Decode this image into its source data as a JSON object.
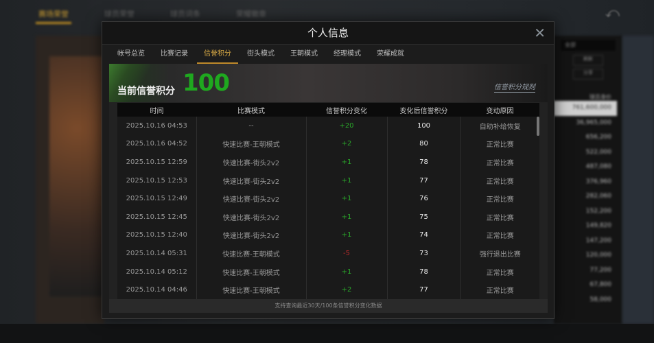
{
  "background": {
    "nav": [
      "赛场荣誉",
      "球员荣誉",
      "球员词条",
      "荣耀徽章"
    ],
    "right_select": "全部",
    "right_buttons": [
      "刷新",
      "分享"
    ],
    "right_header": "球员身价",
    "right_values": [
      "761,600,000",
      "36,965,000",
      "656,200",
      "522,000",
      "487,080",
      "376,960",
      "282,060",
      "152,200",
      "149,820",
      "147,200",
      "120,000",
      "77,200",
      "67,800",
      "58,000"
    ]
  },
  "modal": {
    "title": "个人信息",
    "tabs": [
      "帐号总览",
      "比赛记录",
      "信誉积分",
      "街头模式",
      "王朝模式",
      "经理模式",
      "荣耀成就"
    ],
    "active_tab": 2,
    "banner": {
      "label": "当前信誉积分",
      "score": "100",
      "rules_link": "信誉积分规则"
    },
    "table": {
      "headers": [
        "时间",
        "比赛模式",
        "信誉积分变化",
        "变化后信誉积分",
        "变动原因"
      ],
      "rows": [
        [
          "2025.10.16  04:53",
          "--",
          "+20",
          "100",
          "自助补给恢复"
        ],
        [
          "2025.10.16  04:52",
          "快速比赛-王朝模式",
          "+2",
          "80",
          "正常比赛"
        ],
        [
          "2025.10.15  12:59",
          "快速比赛-街头2v2",
          "+1",
          "78",
          "正常比赛"
        ],
        [
          "2025.10.15  12:53",
          "快速比赛-街头2v2",
          "+1",
          "77",
          "正常比赛"
        ],
        [
          "2025.10.15  12:49",
          "快速比赛-街头2v2",
          "+1",
          "76",
          "正常比赛"
        ],
        [
          "2025.10.15  12:45",
          "快速比赛-街头2v2",
          "+1",
          "75",
          "正常比赛"
        ],
        [
          "2025.10.15  12:40",
          "快速比赛-街头2v2",
          "+1",
          "74",
          "正常比赛"
        ],
        [
          "2025.10.14  05:31",
          "快速比赛-王朝模式",
          "-5",
          "73",
          "强行退出比赛"
        ],
        [
          "2025.10.14  05:12",
          "快速比赛-王朝模式",
          "+1",
          "78",
          "正常比赛"
        ],
        [
          "2025.10.14  04:46",
          "快速比赛-王朝模式",
          "+2",
          "77",
          "正常比赛"
        ]
      ]
    },
    "footer": "支持查询最近30天/100条信誉积分变化数据"
  },
  "colors": {
    "positive": "#2aa82a",
    "negative": "#b52a2a",
    "active_tab": "#d6a845",
    "score": "#1fa81f"
  }
}
